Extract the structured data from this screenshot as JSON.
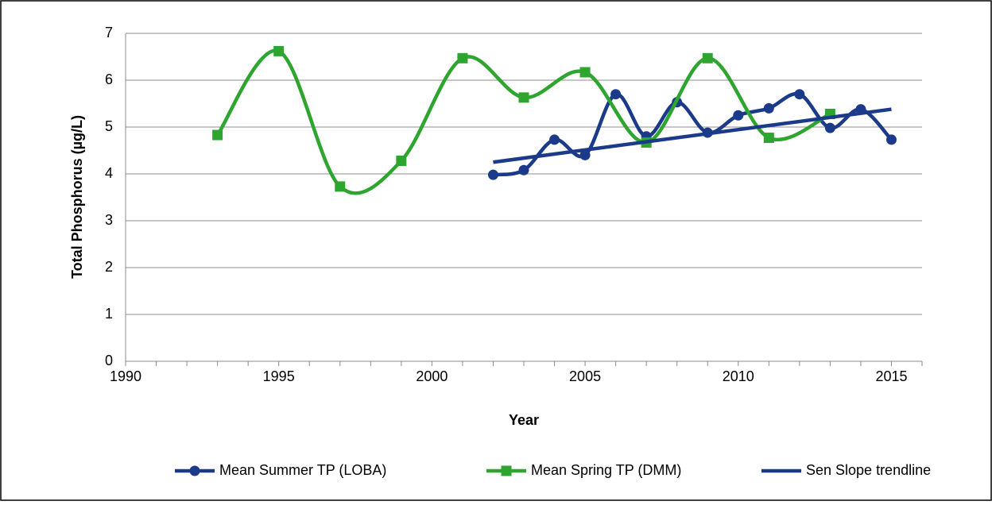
{
  "chart_data": {
    "type": "line",
    "xlabel": "Year",
    "ylabel": "Total Phosphorus (µg/L)",
    "xlim": [
      1990,
      2016
    ],
    "xticks": [
      1990,
      1995,
      2000,
      2005,
      2010,
      2015
    ],
    "xminorticks": [
      1991,
      1992,
      1993,
      1994,
      1996,
      1997,
      1998,
      1999,
      2001,
      2002,
      2003,
      2004,
      2006,
      2007,
      2008,
      2009,
      2011,
      2012,
      2013,
      2014,
      2016
    ],
    "ylim": [
      0,
      7
    ],
    "yticks": [
      0,
      1,
      2,
      3,
      4,
      5,
      6,
      7
    ],
    "grid": true,
    "legend": "bottom",
    "series": [
      {
        "name": "Mean Summer TP (LOBA)",
        "color": "#1b3a8a",
        "marker": "circle",
        "smooth": true,
        "x": [
          2002,
          2003,
          2004,
          2005,
          2006,
          2007,
          2008,
          2009,
          2010,
          2011,
          2012,
          2013,
          2014,
          2015
        ],
        "values": [
          3.98,
          4.08,
          4.73,
          4.4,
          5.7,
          4.8,
          5.53,
          4.88,
          5.25,
          5.4,
          5.7,
          4.98,
          5.38,
          4.73
        ]
      },
      {
        "name": "Mean Spring TP (DMM)",
        "color": "#2ea52e",
        "marker": "square",
        "smooth": true,
        "x": [
          1993,
          1995,
          1997,
          1999,
          2001,
          2003,
          2005,
          2007,
          2009,
          2011,
          2013
        ],
        "values": [
          4.83,
          6.62,
          3.73,
          4.28,
          6.47,
          5.63,
          6.17,
          4.67,
          6.47,
          4.77,
          5.28
        ]
      },
      {
        "name": "Sen Slope trendline",
        "color": "#1b3a8a",
        "marker": "none",
        "smooth": false,
        "x": [
          2002,
          2015
        ],
        "values": [
          4.25,
          5.38
        ]
      }
    ]
  }
}
